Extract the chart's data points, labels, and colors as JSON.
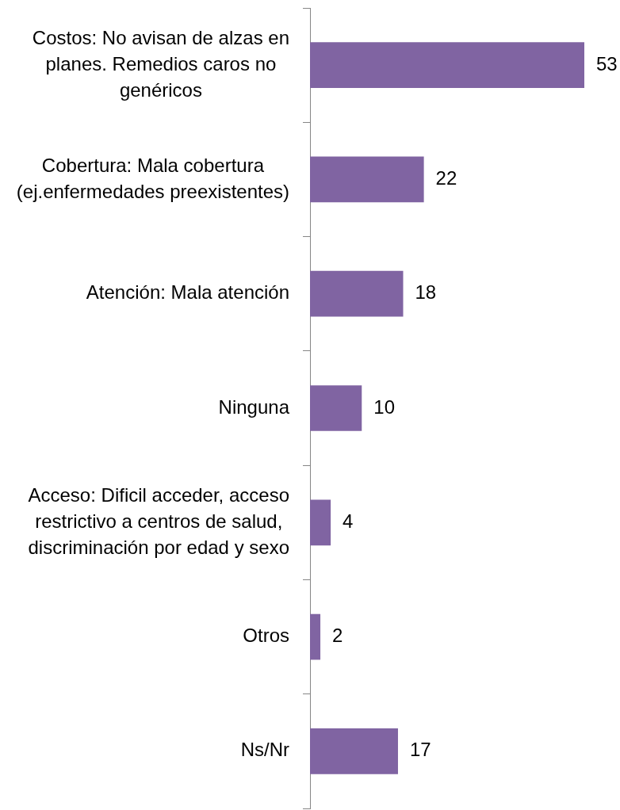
{
  "chart_data": {
    "type": "bar",
    "orientation": "horizontal",
    "categories": [
      "Costos: No avisan de alzas en planes. Remedios caros no genéricos",
      "Cobertura: Mala cobertura (ej.enfermedades preexistentes)",
      "Atención: Mala atención",
      "Ninguna",
      "Acceso: Dificil acceder, acceso restrictivo a centros de salud, discriminación por edad y sexo",
      "Otros",
      "Ns/Nr"
    ],
    "values": [
      53,
      22,
      18,
      10,
      4,
      2,
      17
    ],
    "color": "#8064a2",
    "data_labels": true,
    "tick_labels": "y"
  }
}
